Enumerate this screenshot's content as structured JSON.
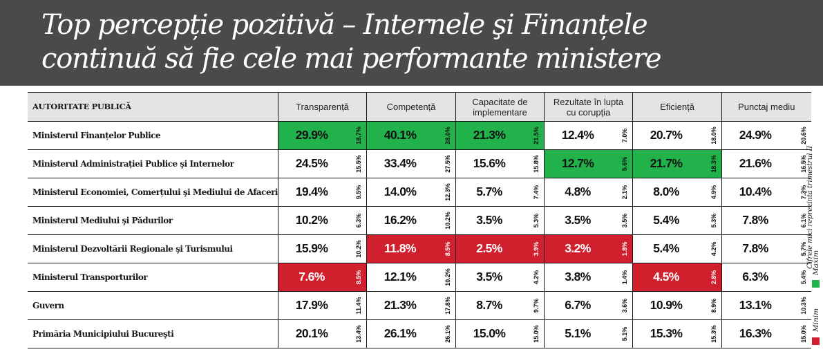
{
  "title": {
    "line1": "Top percepție pozitivă – Internele şi Finanțele",
    "line2": "continuă să fie cele mai performante ministere"
  },
  "colors": {
    "banner": "#4a4a4a",
    "max": "#22b24c",
    "min": "#d0202e",
    "header_bg": "#e3e4e6"
  },
  "table": {
    "columns": [
      "AUTORITATE PUBLICĂ",
      "Transparență",
      "Competență",
      "Capacitate de implementare",
      "Rezultate în lupta cu corupția",
      "Eficiență",
      "Punctaj mediu"
    ],
    "rows": [
      {
        "name": "Ministerul Finanțelor Publice",
        "cells": [
          {
            "value": "29.9%",
            "small": "18.7%",
            "mark": "max"
          },
          {
            "value": "40.1%",
            "small": "38.0%",
            "mark": "max"
          },
          {
            "value": "21.3%",
            "small": "21.5%",
            "mark": "max"
          },
          {
            "value": "12.4%",
            "small": "7.0%",
            "mark": ""
          },
          {
            "value": "20.7%",
            "small": "18.0%",
            "mark": ""
          },
          {
            "value": "24.9%",
            "small": "20.6%",
            "mark": ""
          }
        ]
      },
      {
        "name": "Ministerul Administrației Publice şi Internelor",
        "cells": [
          {
            "value": "24.5%",
            "small": "15.5%",
            "mark": ""
          },
          {
            "value": "33.4%",
            "small": "27.5%",
            "mark": ""
          },
          {
            "value": "15.6%",
            "small": "15.8%",
            "mark": ""
          },
          {
            "value": "12.7%",
            "small": "5.6%",
            "mark": "max"
          },
          {
            "value": "21.7%",
            "small": "18.3%",
            "mark": "max"
          },
          {
            "value": "21.6%",
            "small": "16.5%",
            "mark": ""
          }
        ]
      },
      {
        "name": "Ministerul Economiei, Comerțului şi Mediului de Afaceri",
        "cells": [
          {
            "value": "19.4%",
            "small": "9.5%",
            "mark": ""
          },
          {
            "value": "14.0%",
            "small": "12.3%",
            "mark": ""
          },
          {
            "value": "5.7%",
            "small": "7.4%",
            "mark": ""
          },
          {
            "value": "4.8%",
            "small": "2.1%",
            "mark": ""
          },
          {
            "value": "8.0%",
            "small": "4.9%",
            "mark": ""
          },
          {
            "value": "10.4%",
            "small": "7.3%",
            "mark": ""
          }
        ]
      },
      {
        "name": "Ministerul Mediului şi Pădurilor",
        "cells": [
          {
            "value": "10.2%",
            "small": "6.3%",
            "mark": ""
          },
          {
            "value": "16.2%",
            "small": "10.2%",
            "mark": ""
          },
          {
            "value": "3.5%",
            "small": "5.3%",
            "mark": ""
          },
          {
            "value": "3.5%",
            "small": "3.5%",
            "mark": ""
          },
          {
            "value": "5.4%",
            "small": "5.3%",
            "mark": ""
          },
          {
            "value": "7.8%",
            "small": "6.1%",
            "mark": ""
          }
        ]
      },
      {
        "name": "Ministerul Dezvoltării Regionale şi Turismului",
        "cells": [
          {
            "value": "15.9%",
            "small": "10.2%",
            "mark": ""
          },
          {
            "value": "11.8%",
            "small": "8.5%",
            "mark": "min"
          },
          {
            "value": "2.5%",
            "small": "3.9%",
            "mark": "min"
          },
          {
            "value": "3.2%",
            "small": "1.8%",
            "mark": "min"
          },
          {
            "value": "5.4%",
            "small": "4.2%",
            "mark": ""
          },
          {
            "value": "7.8%",
            "small": "5.7%",
            "mark": ""
          }
        ]
      },
      {
        "name": "Ministerul Transporturilor",
        "cells": [
          {
            "value": "7.6%",
            "small": "8.5%",
            "mark": "min"
          },
          {
            "value": "12.1%",
            "small": "10.2%",
            "mark": ""
          },
          {
            "value": "3.5%",
            "small": "4.2%",
            "mark": ""
          },
          {
            "value": "3.8%",
            "small": "1.4%",
            "mark": ""
          },
          {
            "value": "4.5%",
            "small": "2.8%",
            "mark": "min"
          },
          {
            "value": "6.3%",
            "small": "5.4%",
            "mark": ""
          }
        ]
      },
      {
        "name": "Guvern",
        "cells": [
          {
            "value": "17.9%",
            "small": "11.4%",
            "mark": ""
          },
          {
            "value": "21.3%",
            "small": "17.8%",
            "mark": ""
          },
          {
            "value": "8.7%",
            "small": "9.7%",
            "mark": ""
          },
          {
            "value": "6.7%",
            "small": "3.6%",
            "mark": ""
          },
          {
            "value": "10.9%",
            "small": "8.9%",
            "mark": ""
          },
          {
            "value": "13.1%",
            "small": "10.3%",
            "mark": ""
          }
        ]
      },
      {
        "name": "Primăria Municipiului Bucureşti",
        "cells": [
          {
            "value": "20.1%",
            "small": "13.4%",
            "mark": ""
          },
          {
            "value": "26.1%",
            "small": "26.1%",
            "mark": ""
          },
          {
            "value": "15.0%",
            "small": "15.0%",
            "mark": ""
          },
          {
            "value": "5.1%",
            "small": "5.1%",
            "mark": ""
          },
          {
            "value": "15.3%",
            "small": "15.3%",
            "mark": ""
          },
          {
            "value": "16.3%",
            "small": "15.0%",
            "mark": ""
          }
        ]
      }
    ]
  },
  "legend": {
    "note": "Cifrele mici reprezintă trimestrul II",
    "max_label": "Maxim",
    "min_label": "Minim"
  }
}
